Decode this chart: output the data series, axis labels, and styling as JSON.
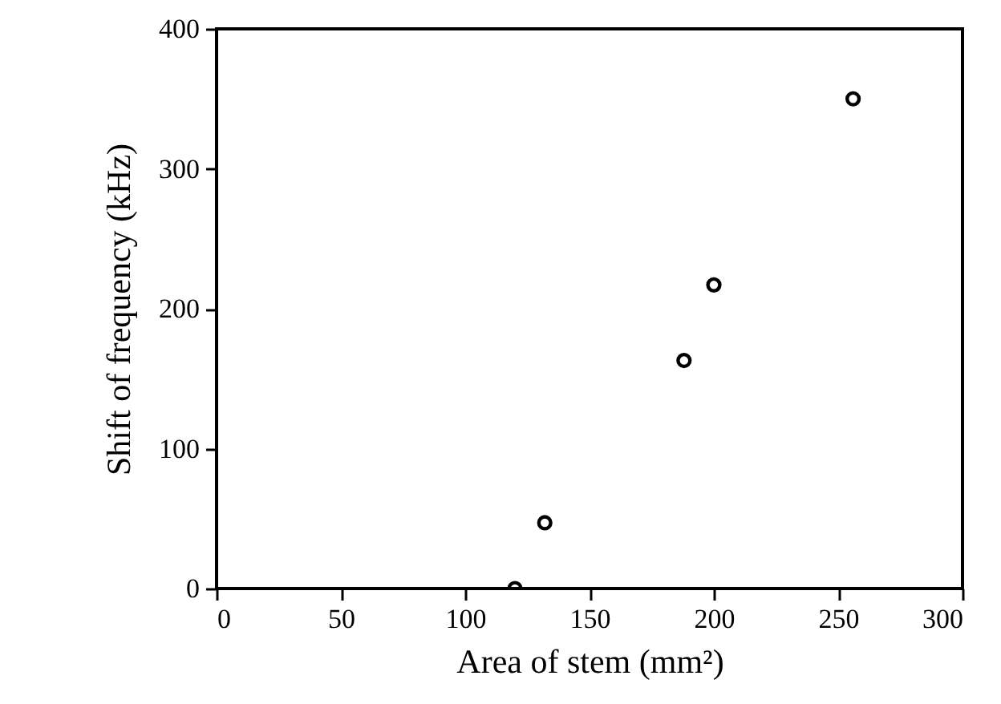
{
  "chart_data": {
    "type": "scatter",
    "xlabel": "Area of stem (mm²)",
    "ylabel": "Shift of frequency (kHz)",
    "x": [
      120,
      132,
      188,
      200,
      256
    ],
    "values": [
      0,
      47,
      163,
      217,
      350
    ],
    "color": "#000000",
    "marker": "circle",
    "xlim": [
      0,
      300
    ],
    "xticks": [
      0,
      50,
      100,
      150,
      200,
      250,
      300
    ],
    "ylim": [
      0,
      400
    ],
    "yticks": [
      0,
      100,
      200,
      300,
      400
    ],
    "grid": false
  }
}
